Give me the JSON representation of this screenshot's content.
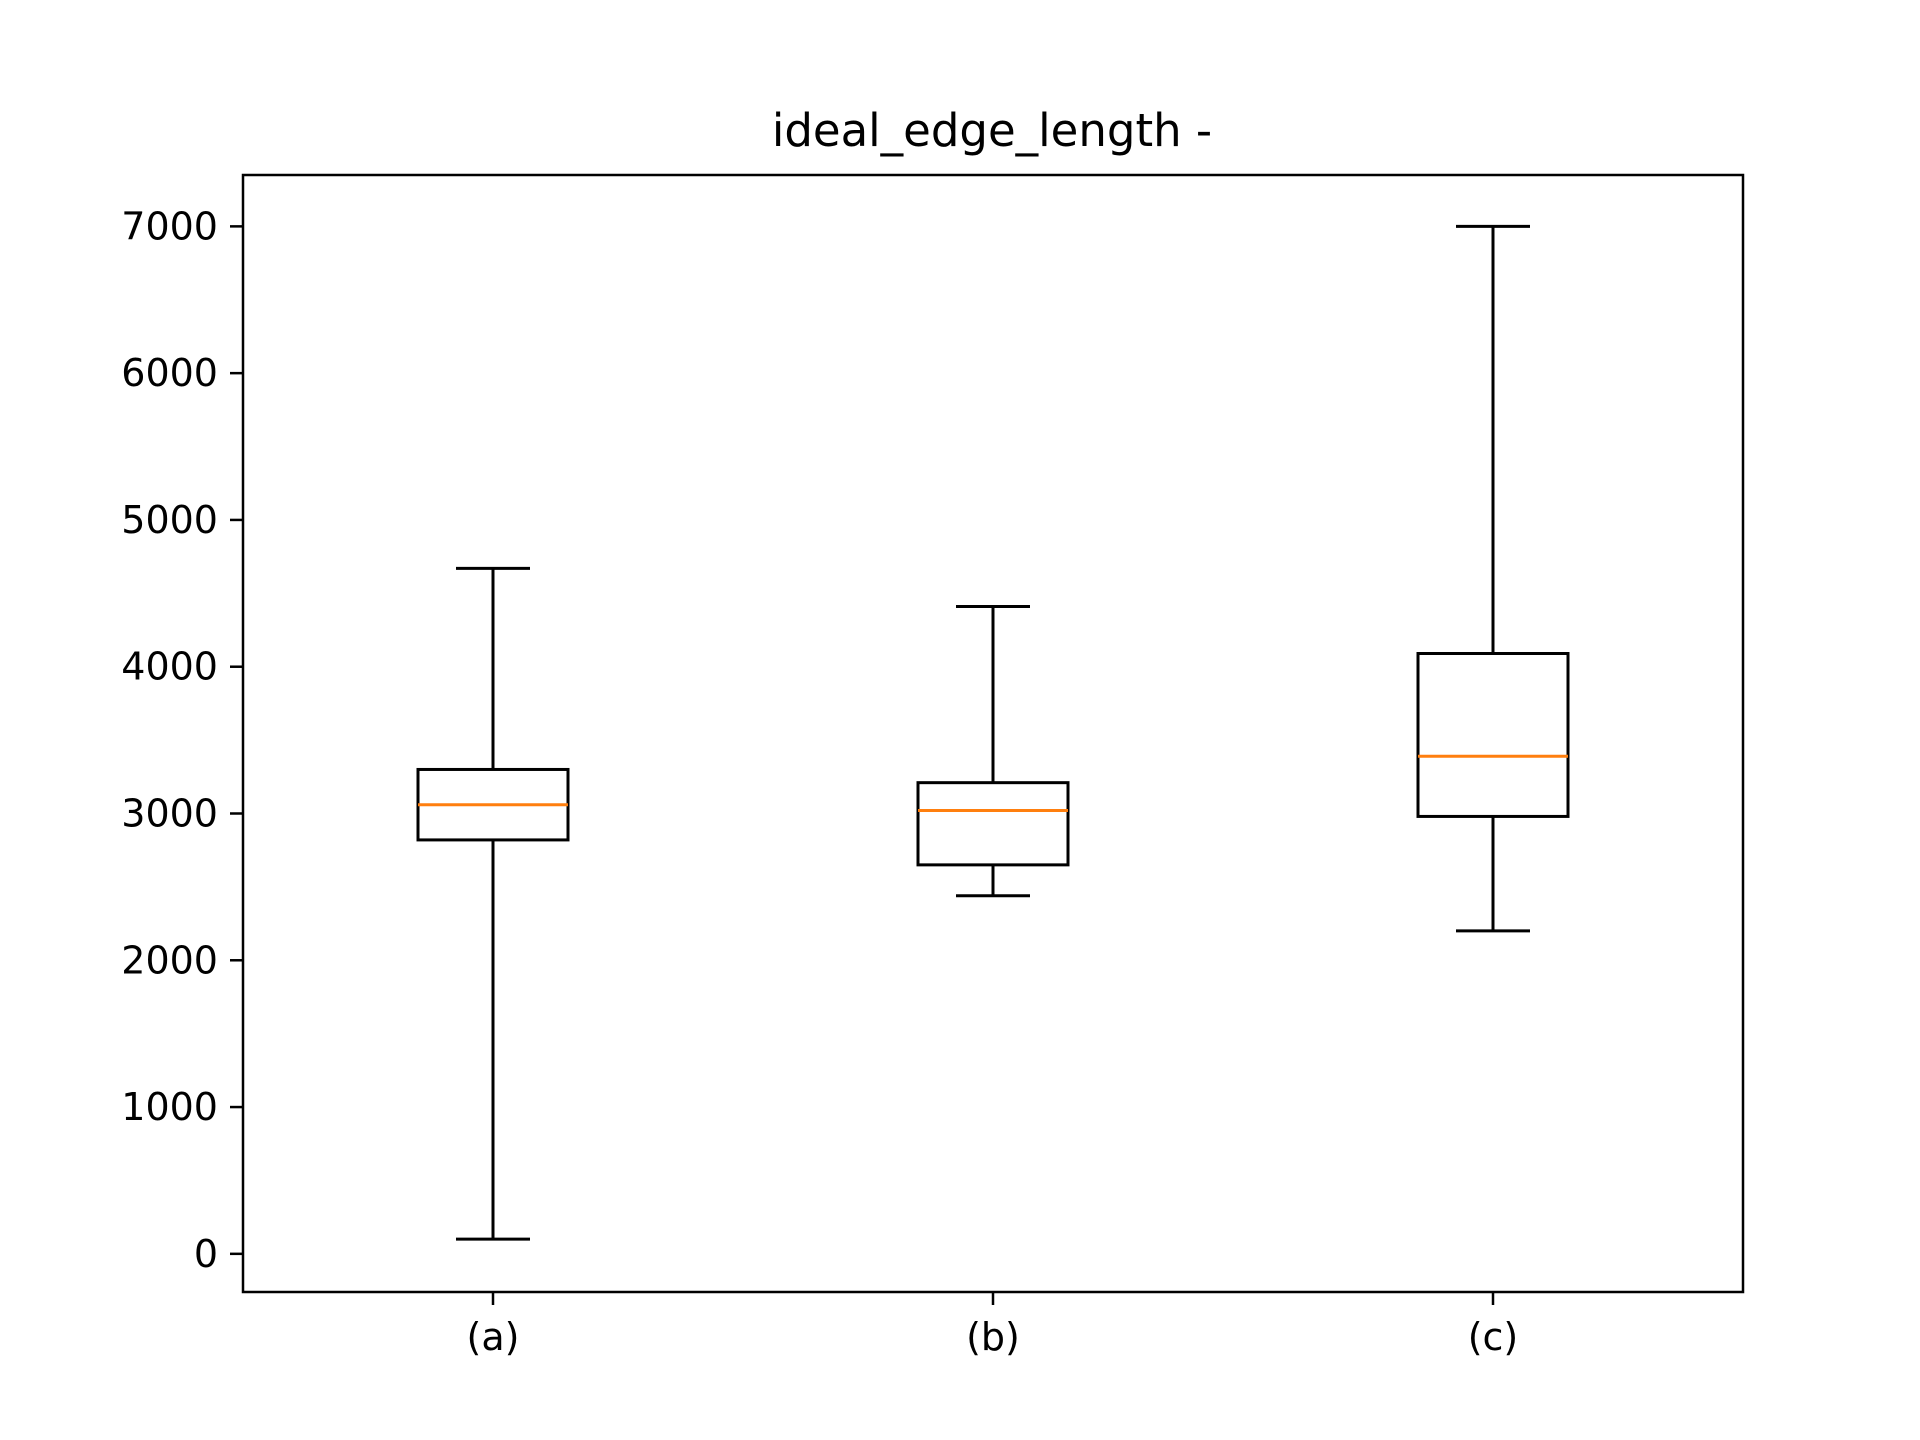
{
  "chart_data": {
    "type": "box",
    "title": "ideal_edge_length -",
    "xlabel": "",
    "ylabel": "",
    "categories": [
      "(a)",
      "(b)",
      "(c)"
    ],
    "boxes": [
      {
        "category": "(a)",
        "whisker_low": 100,
        "q1": 2820,
        "median": 3060,
        "q3": 3300,
        "whisker_high": 4670
      },
      {
        "category": "(b)",
        "whisker_low": 2440,
        "q1": 2650,
        "median": 3020,
        "q3": 3210,
        "whisker_high": 4410
      },
      {
        "category": "(c)",
        "whisker_low": 2200,
        "q1": 2980,
        "median": 3390,
        "q3": 4090,
        "whisker_high": 7000
      }
    ],
    "ylim": [
      -260,
      7350
    ],
    "yticks": [
      0,
      1000,
      2000,
      3000,
      4000,
      5000,
      6000,
      7000
    ],
    "grid": false,
    "colors": {
      "box": "#000000",
      "median": "#ff7f0e",
      "axes": "#000000",
      "background": "#ffffff"
    }
  }
}
